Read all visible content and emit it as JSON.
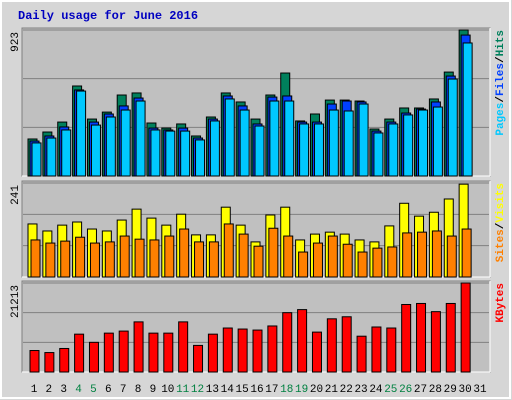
{
  "chart_data": [
    {
      "type": "bar",
      "title": "Daily usage for June 2016",
      "categories": [
        "1",
        "2",
        "3",
        "4",
        "5",
        "6",
        "7",
        "8",
        "9",
        "10",
        "11",
        "12",
        "13",
        "14",
        "15",
        "16",
        "17",
        "18",
        "19",
        "20",
        "21",
        "22",
        "23",
        "24",
        "25",
        "26",
        "27",
        "28",
        "29",
        "30",
        "31"
      ],
      "x_label_colors": [
        "#000000",
        "#000000",
        "#000000",
        "#008040",
        "#008040",
        "#000000",
        "#000000",
        "#000000",
        "#000000",
        "#000000",
        "#008040",
        "#008040",
        "#000000",
        "#000000",
        "#000000",
        "#000000",
        "#000000",
        "#008040",
        "#008040",
        "#000000",
        "#000000",
        "#000000",
        "#000000",
        "#000000",
        "#008040",
        "#008040",
        "#000000",
        "#000000",
        "#000000",
        "#000000",
        "#000000"
      ],
      "legend_separator": "/",
      "series": [
        {
          "name": "Hits",
          "color": "#00805c",
          "values": [
            234,
            278,
            341,
            569,
            360,
            404,
            512,
            525,
            335,
            303,
            329,
            253,
            373,
            525,
            468,
            360,
            512,
            651,
            348,
            392,
            480,
            480,
            474,
            297,
            360,
            430,
            430,
            487,
            657,
            923,
            null
          ]
        },
        {
          "name": "Files",
          "color": "#0040ff",
          "values": [
            221,
            253,
            310,
            544,
            341,
            392,
            443,
            493,
            303,
            291,
            303,
            240,
            360,
            506,
            443,
            329,
            499,
            506,
            341,
            341,
            455,
            474,
            468,
            284,
            341,
            398,
            423,
            468,
            632,
            891,
            null
          ]
        },
        {
          "name": "Pages",
          "color": "#00c8ff",
          "values": [
            209,
            240,
            291,
            537,
            322,
            373,
            417,
            474,
            291,
            284,
            284,
            228,
            348,
            487,
            417,
            316,
            474,
            474,
            329,
            329,
            417,
            411,
            455,
            272,
            329,
            386,
            417,
            436,
            613,
            841,
            null
          ]
        }
      ],
      "ylim": [
        0,
        923
      ],
      "yticks": [
        923
      ]
    },
    {
      "type": "bar",
      "legend_separator": "/",
      "series": [
        {
          "name": "Visits",
          "color": "#ffff00",
          "values": [
            136,
            118,
            133,
            141,
            123,
            118,
            146,
            174,
            151,
            133,
            161,
            108,
            108,
            179,
            133,
            90,
            159,
            179,
            95,
            110,
            115,
            110,
            95,
            90,
            131,
            189,
            156,
            166,
            200,
            238,
            null
          ]
        },
        {
          "name": "Sites",
          "color": "#ff8000",
          "values": [
            95,
            87,
            92,
            102,
            87,
            90,
            105,
            97,
            95,
            105,
            123,
            90,
            90,
            136,
            110,
            79,
            125,
            105,
            64,
            87,
            105,
            84,
            64,
            74,
            77,
            113,
            115,
            118,
            105,
            123,
            null
          ]
        }
      ],
      "ylim": [
        0,
        241
      ],
      "yticks": [
        241
      ]
    },
    {
      "type": "bar",
      "series": [
        {
          "name": "KBytes",
          "color": "#ff0000",
          "values": [
            5120,
            4632,
            5607,
            9020,
            7070,
            9264,
            9752,
            11946,
            9264,
            9264,
            11946,
            6339,
            9020,
            10483,
            10239,
            9996,
            10971,
            14140,
            14872,
            9508,
            12677,
            13165,
            8533,
            10727,
            10483,
            16091,
            16335,
            14384,
            16335,
            21213,
            null
          ]
        }
      ],
      "ylim": [
        0,
        21213
      ],
      "yticks": [
        21213
      ]
    }
  ]
}
